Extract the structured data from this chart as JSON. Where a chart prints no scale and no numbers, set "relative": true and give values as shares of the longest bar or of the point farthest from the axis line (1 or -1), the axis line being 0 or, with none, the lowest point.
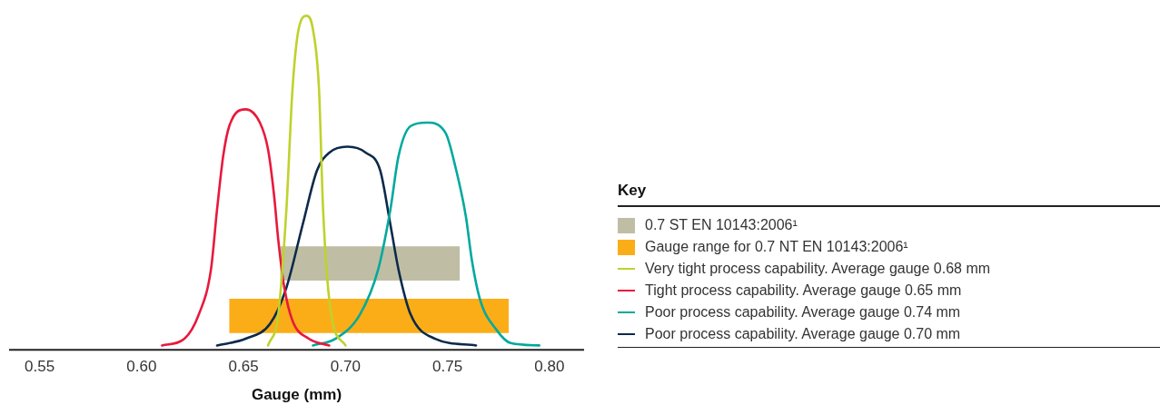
{
  "chart_data": {
    "type": "line",
    "relative": true,
    "xlabel": "Gauge (mm)",
    "xlim": [
      0.535,
      0.817
    ],
    "xticks": [
      0.55,
      {
        "value": 0.6,
        "label": "0.60"
      },
      0.65,
      {
        "value": 0.7,
        "label": "0.70"
      },
      0.75,
      {
        "value": 0.8,
        "label": "0.80"
      }
    ],
    "grid": false,
    "marker": "none",
    "line_style": "solid",
    "legend": "right",
    "legend_title": "Key",
    "bands": [
      {
        "axis": "x",
        "from": 0.668,
        "to": 0.756,
        "label": "0.7 ST EN 10143:2006¹",
        "color": "#bfbea5"
      },
      {
        "axis": "x",
        "from": 0.643,
        "to": 0.78,
        "label": "Gauge range for 0.7 NT EN 10143:2006¹",
        "color": "#fbad18"
      }
    ],
    "series": [
      {
        "name": "Very tight process capability. Average gauge 0.68 mm",
        "color": "#bfd22b",
        "x": [
          0.662,
          0.667,
          0.671,
          0.674,
          0.677,
          0.681,
          0.684,
          0.687,
          0.689,
          0.693,
          0.7
        ],
        "values": [
          0.013,
          0.105,
          0.42,
          0.78,
          0.96,
          1.0,
          0.96,
          0.78,
          0.42,
          0.105,
          0.013
        ]
      },
      {
        "name": "Tight process capability. Average gauge 0.65 mm",
        "color": "#e8193c",
        "x": [
          0.61,
          0.621,
          0.628,
          0.634,
          0.637,
          0.64,
          0.643,
          0.651,
          0.658,
          0.662,
          0.665,
          0.667,
          0.67,
          0.674,
          0.682,
          0.692
        ],
        "values": [
          0.013,
          0.033,
          0.105,
          0.24,
          0.42,
          0.58,
          0.67,
          0.72,
          0.68,
          0.6,
          0.46,
          0.33,
          0.186,
          0.087,
          0.033,
          0.013
        ]
      },
      {
        "name": "Poor process capability. Average gauge 0.74 mm",
        "color": "#00a99d",
        "x": [
          0.684,
          0.695,
          0.707,
          0.716,
          0.722,
          0.726,
          0.732,
          0.74,
          0.749,
          0.754,
          0.759,
          0.762,
          0.766,
          0.774,
          0.781,
          0.795
        ],
        "values": [
          0.013,
          0.033,
          0.105,
          0.24,
          0.42,
          0.58,
          0.67,
          0.68,
          0.65,
          0.545,
          0.4,
          0.267,
          0.15,
          0.06,
          0.02,
          0.013
        ]
      },
      {
        "name": "Poor process capability. Average gauge 0.70 mm",
        "color": "#0c2a4a",
        "x": [
          0.637,
          0.651,
          0.663,
          0.671,
          0.679,
          0.686,
          0.692,
          0.701,
          0.71,
          0.717,
          0.722,
          0.726,
          0.732,
          0.744,
          0.764
        ],
        "values": [
          0.013,
          0.033,
          0.078,
          0.186,
          0.375,
          0.537,
          0.59,
          0.608,
          0.59,
          0.537,
          0.375,
          0.24,
          0.105,
          0.033,
          0.013
        ]
      }
    ]
  }
}
